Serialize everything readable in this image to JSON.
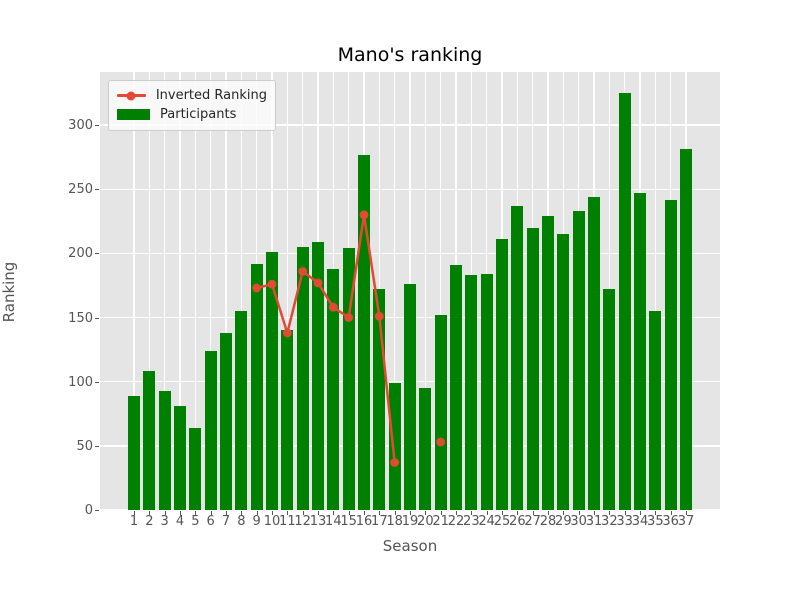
{
  "chart_data": {
    "type": "bar",
    "title": "Mano's ranking",
    "xlabel": "Season",
    "ylabel": "Ranking",
    "categories": [
      1,
      2,
      3,
      4,
      5,
      6,
      7,
      8,
      9,
      10,
      11,
      12,
      13,
      14,
      15,
      16,
      17,
      18,
      19,
      20,
      21,
      22,
      23,
      24,
      25,
      26,
      27,
      28,
      29,
      30,
      31,
      32,
      33,
      34,
      35,
      36,
      37
    ],
    "series": [
      {
        "name": "Participants",
        "type": "bar",
        "color": "#008000",
        "values": [
          89,
          108,
          93,
          81,
          64,
          124,
          138,
          155,
          192,
          201,
          140,
          205,
          209,
          188,
          204,
          277,
          172,
          99,
          176,
          95,
          152,
          191,
          183,
          184,
          211,
          237,
          220,
          229,
          215,
          233,
          244,
          172,
          325,
          247,
          155,
          242,
          281
        ]
      },
      {
        "name": "Inverted Ranking",
        "type": "line",
        "color": "#e24a33",
        "values": [
          null,
          null,
          null,
          null,
          null,
          null,
          null,
          null,
          173,
          176,
          138,
          186,
          177,
          158,
          150,
          230,
          151,
          37,
          null,
          null,
          53,
          null,
          null,
          null,
          null,
          null,
          null,
          null,
          null,
          null,
          null,
          null,
          null,
          null,
          null,
          null,
          null
        ]
      }
    ],
    "ylim": [
      0,
      341
    ],
    "yticks": [
      0,
      50,
      100,
      150,
      200,
      250,
      300
    ],
    "grid": true,
    "legend_position": "upper left",
    "plot_background": "#e5e5e5",
    "grid_color": "#ffffff",
    "tick_color": "#555555"
  }
}
